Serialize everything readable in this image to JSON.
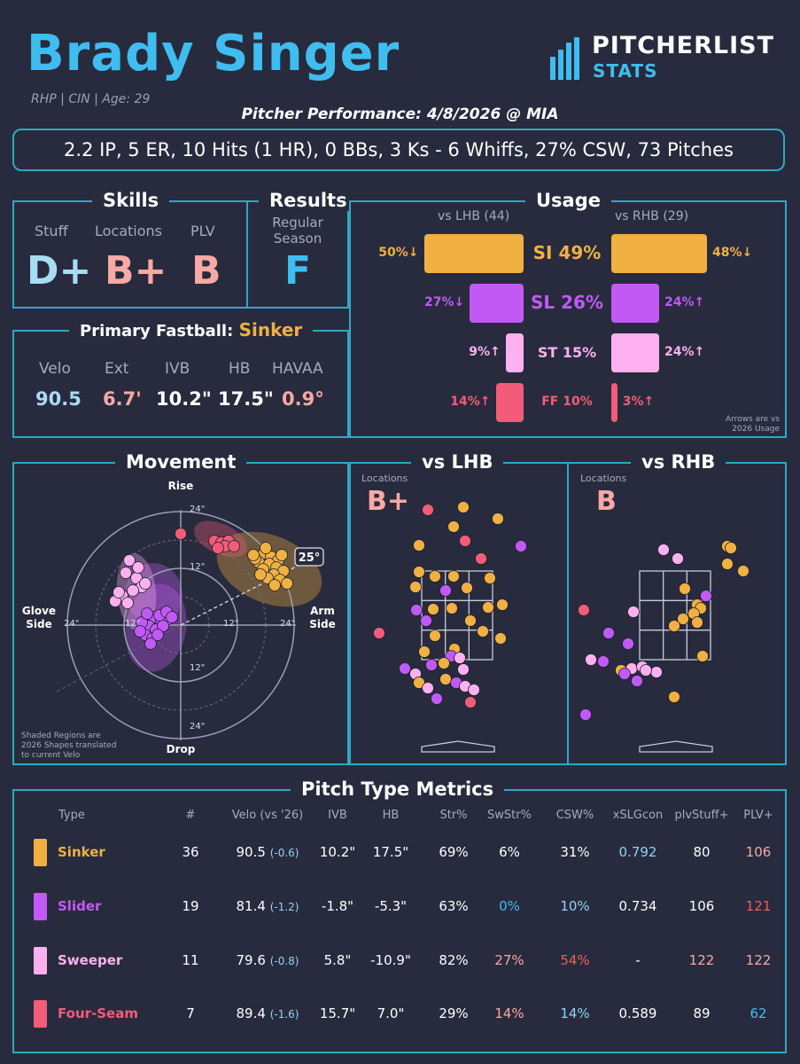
{
  "header": {
    "name": "Brady Singer",
    "info": "RHP | CIN | Age: 29",
    "performance": "Pitcher Performance: 4/8/2026 @ MIA",
    "logo_top": "PITCHERLIST",
    "logo_bottom": "STATS",
    "statline": "2.2 IP, 5 ER, 10 Hits (1 HR), 0 BBs, 3 Ks - 6 Whiffs, 27% CSW, 73 Pitches"
  },
  "skills": {
    "title": "Skills",
    "items": [
      {
        "label": "Stuff",
        "grade": "D+",
        "color": "#a8dcf5"
      },
      {
        "label": "Locations",
        "grade": "B+",
        "color": "#f7a9a3"
      },
      {
        "label": "PLV",
        "grade": "B",
        "color": "#f7a9a3"
      }
    ]
  },
  "results": {
    "title": "Results",
    "label": "Regular\nSeason",
    "label_l1": "Regular",
    "label_l2": "Season",
    "grade": "F",
    "color": "#3fbdf0"
  },
  "fastball": {
    "title_prefix": "Primary Fastball:",
    "pitch": "Sinker",
    "metrics": [
      {
        "label": "Velo",
        "value": "90.5",
        "color": "#a8dcf5"
      },
      {
        "label": "Ext",
        "value": "6.7'",
        "color": "#f7a9a3"
      },
      {
        "label": "IVB",
        "value": "10.2\"",
        "color": "#ffffff"
      },
      {
        "label": "HB",
        "value": "17.5\"",
        "color": "#ffffff"
      },
      {
        "label": "HAVAA",
        "value": "0.9°",
        "color": "#f7a9a3"
      }
    ]
  },
  "usage": {
    "title": "Usage",
    "lhb_label": "vs LHB (44)",
    "rhb_label": "vs RHB (29)",
    "note_l1": "Arrows are vs",
    "note_l2": "2026 Usage",
    "rows": [
      {
        "pitch": "SI 49%",
        "color": "#f0b042",
        "lhb": 50,
        "lhb_text": "50%↓",
        "rhb": 48,
        "rhb_text": "48%↓"
      },
      {
        "pitch": "SL 26%",
        "color": "#c159f5",
        "lhb": 27,
        "lhb_text": "27%↓",
        "rhb": 24,
        "rhb_text": "24%↑"
      },
      {
        "pitch": "ST 15%",
        "color": "#fcb0f0",
        "lhb": 9,
        "lhb_text": "9%↑",
        "rhb": 24,
        "rhb_text": "24%↑"
      },
      {
        "pitch": "FF 10%",
        "color": "#f25c79",
        "lhb": 14,
        "lhb_text": "14%↑",
        "rhb": 3,
        "rhb_text": "3%↑"
      }
    ]
  },
  "movement": {
    "title": "Movement",
    "rise": "Rise",
    "drop": "Drop",
    "glove_l1": "Glove",
    "glove_l2": "Side",
    "arm_l1": "Arm",
    "arm_l2": "Side",
    "ring_24": "24\"",
    "ring_12": "12\"",
    "angle": "25°",
    "note_l1": "Shaded Regions are",
    "note_l2": "2026 Shapes translated",
    "note_l3": "to current Velo"
  },
  "locations": {
    "lhb_title": "vs LHB",
    "rhb_title": "vs RHB",
    "label": "Locations",
    "lhb_grade": "B+",
    "rhb_grade": "B"
  },
  "colors": {
    "sinker": "#f0b042",
    "slider": "#c159f5",
    "sweeper": "#fcb0f0",
    "fourseam": "#f25c79",
    "accent": "#2fa8c4",
    "blue": "#3fbdf0",
    "red": "#f25c5c",
    "pink": "#f7a9a3"
  },
  "chart_data": {
    "type": "table",
    "title": "Pitch Type Metrics",
    "columns": [
      "Type",
      "#",
      "Velo (vs '26)",
      "IVB",
      "HB",
      "Str%",
      "SwStr%",
      "CSW%",
      "xSLGcon",
      "plvStuff+",
      "PLV+"
    ],
    "rows": [
      {
        "type": "Sinker",
        "color": "#f0b042",
        "n": "36",
        "velo": "90.5",
        "delta": "(-0.6)",
        "ivb": "10.2\"",
        "hb": "17.5\"",
        "str": "69%",
        "swstr": "6%",
        "csw": "31%",
        "xslg": "0.792",
        "stuff": "80",
        "plv": "106",
        "c_swstr": "#ffffff",
        "c_csw": "#ffffff",
        "c_xslg": "#8fd3f4",
        "c_stuff": "#ffffff",
        "c_plv": "#f7a9a3"
      },
      {
        "type": "Slider",
        "color": "#c159f5",
        "n": "19",
        "velo": "81.4",
        "delta": "(-1.2)",
        "ivb": "-1.8\"",
        "hb": "-5.3\"",
        "str": "63%",
        "swstr": "0%",
        "csw": "10%",
        "xslg": "0.734",
        "stuff": "106",
        "plv": "121",
        "c_swstr": "#3fbdf0",
        "c_csw": "#8fd3f4",
        "c_xslg": "#ffffff",
        "c_stuff": "#ffffff",
        "c_plv": "#f25c5c"
      },
      {
        "type": "Sweeper",
        "color": "#fcb0f0",
        "n": "11",
        "velo": "79.6",
        "delta": "(-0.8)",
        "ivb": "5.8\"",
        "hb": "-10.9\"",
        "str": "82%",
        "swstr": "27%",
        "csw": "54%",
        "xslg": "-",
        "stuff": "122",
        "plv": "122",
        "c_swstr": "#f7a9a3",
        "c_csw": "#f25c5c",
        "c_xslg": "#ffffff",
        "c_stuff": "#f7a9a3",
        "c_plv": "#f7a9a3"
      },
      {
        "type": "Four-Seam",
        "color": "#f25c79",
        "n": "7",
        "velo": "89.4",
        "delta": "(-1.6)",
        "ivb": "15.7\"",
        "hb": "7.0\"",
        "str": "29%",
        "swstr": "14%",
        "csw": "14%",
        "xslg": "0.589",
        "stuff": "89",
        "plv": "62",
        "c_swstr": "#f7a9a3",
        "c_csw": "#8fd3f4",
        "c_xslg": "#ffffff",
        "c_stuff": "#ffffff",
        "c_plv": "#3fbdf0"
      }
    ]
  }
}
